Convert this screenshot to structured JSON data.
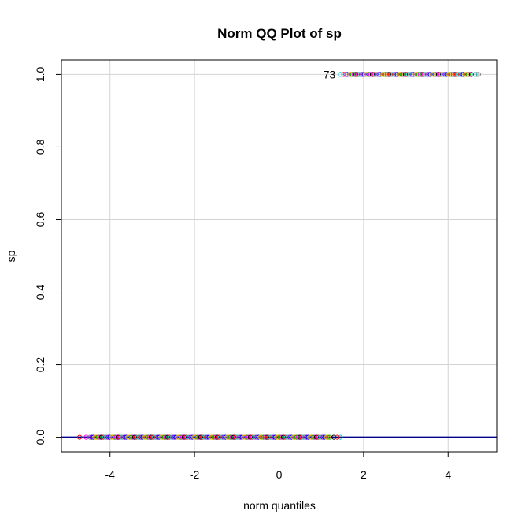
{
  "chart_data": {
    "type": "scatter",
    "title": "Norm QQ Plot of sp",
    "xlabel": "norm quantiles",
    "ylabel": "sp",
    "xlim": [
      -5.15,
      5.15
    ],
    "ylim": [
      -0.04,
      1.04
    ],
    "x_ticks": [
      -4,
      -2,
      0,
      2,
      4
    ],
    "x_tick_labels": [
      "-4",
      "-2",
      "0",
      "2",
      "4"
    ],
    "y_ticks": [
      0.0,
      0.2,
      0.4,
      0.6,
      0.8,
      1.0
    ],
    "y_tick_labels": [
      "0.0",
      "0.2",
      "0.4",
      "0.6",
      "0.8",
      "1.0"
    ],
    "grid": true,
    "point_colors": [
      "#ff0000",
      "#00aa00",
      "#0000ff",
      "#00cccc",
      "#ff00ff",
      "#cccc00",
      "#888888",
      "#000000",
      "#ff8800",
      "#8800ff"
    ],
    "reference_line": {
      "intercept": 0,
      "slope": 0,
      "color": "#00008b"
    },
    "series": [
      {
        "y": 0,
        "x_min": -4.72,
        "x_max": 1.45
      },
      {
        "y": 1,
        "x_min": 1.45,
        "x_max": 4.72
      }
    ],
    "annotations": [
      {
        "text": "73",
        "x": 1.45,
        "y": 1.0
      }
    ]
  }
}
